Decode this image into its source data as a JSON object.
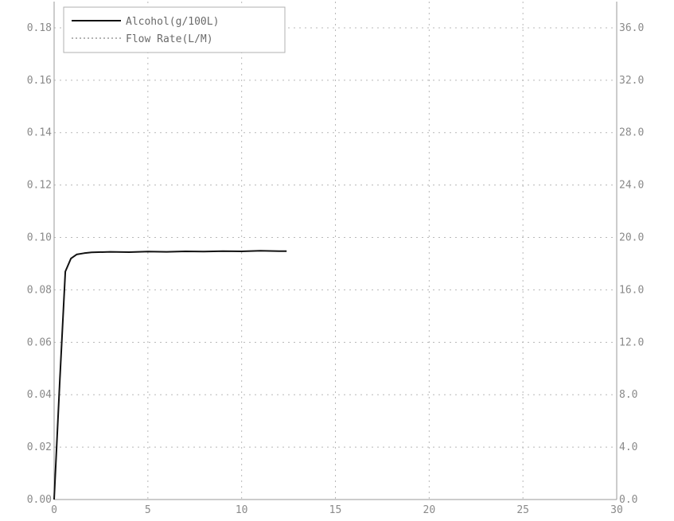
{
  "chart_data": {
    "type": "line",
    "title": "",
    "xlabel": "",
    "ylabel": "",
    "y2label": "",
    "xlim": [
      0,
      30
    ],
    "ylim": [
      0,
      0.19
    ],
    "y2lim": [
      0,
      38
    ],
    "x_ticks": [
      "0",
      "5",
      "10",
      "15",
      "20",
      "25",
      "30"
    ],
    "y_ticks": [
      "0.00",
      "0.02",
      "0.04",
      "0.06",
      "0.08",
      "0.10",
      "0.12",
      "0.14",
      "0.16",
      "0.18"
    ],
    "y2_ticks": [
      "0.0",
      "4.0",
      "8.0",
      "12.0",
      "16.0",
      "20.0",
      "24.0",
      "28.0",
      "32.0",
      "36.0"
    ],
    "grid": true,
    "legend_position": "top-left",
    "series": [
      {
        "name": "Alcohol(g/100L)",
        "axis": "left",
        "style": "solid",
        "color": "#111111",
        "x": [
          0,
          0.3,
          0.6,
          0.9,
          1.2,
          1.6,
          2.0,
          3.0,
          4.0,
          5.0,
          6.0,
          7.0,
          8.0,
          9.0,
          10.0,
          11.0,
          12.0,
          12.4
        ],
        "y": [
          0,
          0.045,
          0.087,
          0.092,
          0.0935,
          0.094,
          0.0943,
          0.0945,
          0.0944,
          0.0946,
          0.0945,
          0.0947,
          0.0946,
          0.0948,
          0.0947,
          0.0949,
          0.0948,
          0.0948
        ]
      },
      {
        "name": "Flow Rate(L/M)",
        "axis": "right",
        "style": "dotted",
        "color": "#9a9a9a",
        "x": [],
        "y": []
      }
    ]
  }
}
